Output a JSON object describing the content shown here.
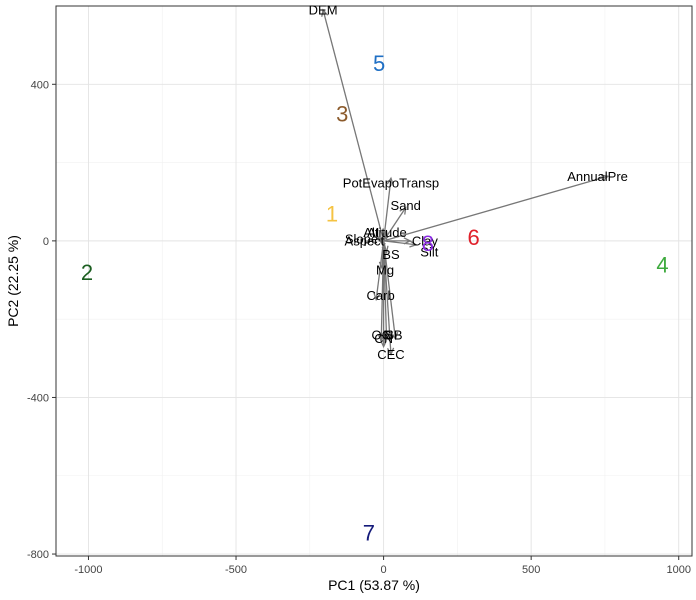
{
  "chart_data": {
    "type": "scatter",
    "subtype": "pca-biplot",
    "title": "",
    "xlabel": "PC1 (53.87 %)",
    "ylabel": "PC2 (22.25 %)",
    "xlim": [
      -1110,
      1045
    ],
    "ylim": [
      -805,
      600
    ],
    "x_ticks": [
      -1000,
      -500,
      0,
      500,
      1000
    ],
    "x_tick_labels": [
      "-1000",
      "-500",
      "0",
      "500",
      "1000"
    ],
    "y_ticks": [
      -800,
      -400,
      0,
      400
    ],
    "y_tick_labels": [
      "-800",
      "-400",
      "0",
      "400"
    ],
    "grid": true,
    "legend": "none",
    "cluster_labels": [
      {
        "label": "1",
        "x": -175,
        "y": 70,
        "color": "#F5C342"
      },
      {
        "label": "2",
        "x": -1005,
        "y": -80,
        "color": "#1B5E20"
      },
      {
        "label": "3",
        "x": -140,
        "y": 325,
        "color": "#8B5A2B"
      },
      {
        "label": "4",
        "x": 945,
        "y": -60,
        "color": "#3DAA3D"
      },
      {
        "label": "5",
        "x": -15,
        "y": 455,
        "color": "#1F6FC4"
      },
      {
        "label": "6",
        "x": 305,
        "y": 10,
        "color": "#E0202A"
      },
      {
        "label": "7",
        "x": -50,
        "y": -745,
        "color": "#141A7A"
      },
      {
        "label": "8",
        "x": 150,
        "y": -5,
        "color": "#8A2BE2"
      }
    ],
    "loading_color": "#777777",
    "loadings": [
      {
        "label": "DEM",
        "x": -205,
        "y": 590,
        "lx": -205,
        "ly": 590
      },
      {
        "label": "AnnualPre",
        "x": 760,
        "y": 165,
        "lx": 725,
        "ly": 165
      },
      {
        "label": "PotEvapoTransp",
        "x": 25,
        "y": 160,
        "lx": 25,
        "ly": 148
      },
      {
        "label": "Sand",
        "x": 75,
        "y": 85,
        "lx": 75,
        "ly": 90
      },
      {
        "label": "Altitude",
        "x": 10,
        "y": 25,
        "lx": 5,
        "ly": 22
      },
      {
        "label": "AI",
        "x": 5,
        "y": 20,
        "lx": -35,
        "ly": 22
      },
      {
        "label": "Aspect",
        "x": -20,
        "y": 8,
        "lx": -65,
        "ly": 0
      },
      {
        "label": "Slope",
        "x": -15,
        "y": 0,
        "lx": -75,
        "ly": 5
      },
      {
        "label": "Clay",
        "x": 90,
        "y": 0,
        "lx": 140,
        "ly": 0
      },
      {
        "label": "Silt",
        "x": 110,
        "y": -10,
        "lx": 155,
        "ly": -28
      },
      {
        "label": "BS",
        "x": 10,
        "y": -30,
        "lx": 25,
        "ly": -35
      },
      {
        "label": "Mg",
        "x": -5,
        "y": -70,
        "lx": 5,
        "ly": -75
      },
      {
        "label": "Carb",
        "x": -25,
        "y": -150,
        "lx": -10,
        "ly": -140
      },
      {
        "label": "OC",
        "x": -8,
        "y": -255,
        "lx": -8,
        "ly": -240
      },
      {
        "label": "N",
        "x": 10,
        "y": -250,
        "lx": 15,
        "ly": -240
      },
      {
        "label": "SB",
        "x": 40,
        "y": -250,
        "lx": 35,
        "ly": -240
      },
      {
        "label": "CN",
        "x": 0,
        "y": -270,
        "lx": 0,
        "ly": -250
      },
      {
        "label": "CEC",
        "x": 25,
        "y": -290,
        "lx": 25,
        "ly": -290
      }
    ]
  }
}
